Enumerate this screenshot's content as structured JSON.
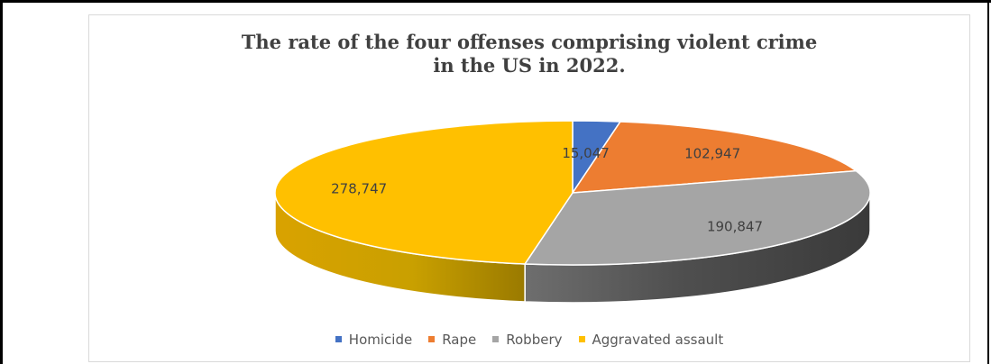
{
  "chart_data": {
    "type": "pie",
    "title": [
      "The rate of the four offenses comprising violent crime",
      "in the US in 2022."
    ],
    "categories": [
      "Homicide",
      "Rape",
      "Robbery",
      "Aggravated assault"
    ],
    "values": [
      15047,
      102947,
      190847,
      278747
    ],
    "data_labels": [
      "15,047",
      "102,947",
      "190,847",
      "278,747"
    ],
    "colors": [
      "#4472c4",
      "#ed7d31",
      "#a5a5a5",
      "#ffc000"
    ],
    "legend": "bottom",
    "style": "3D pie"
  }
}
